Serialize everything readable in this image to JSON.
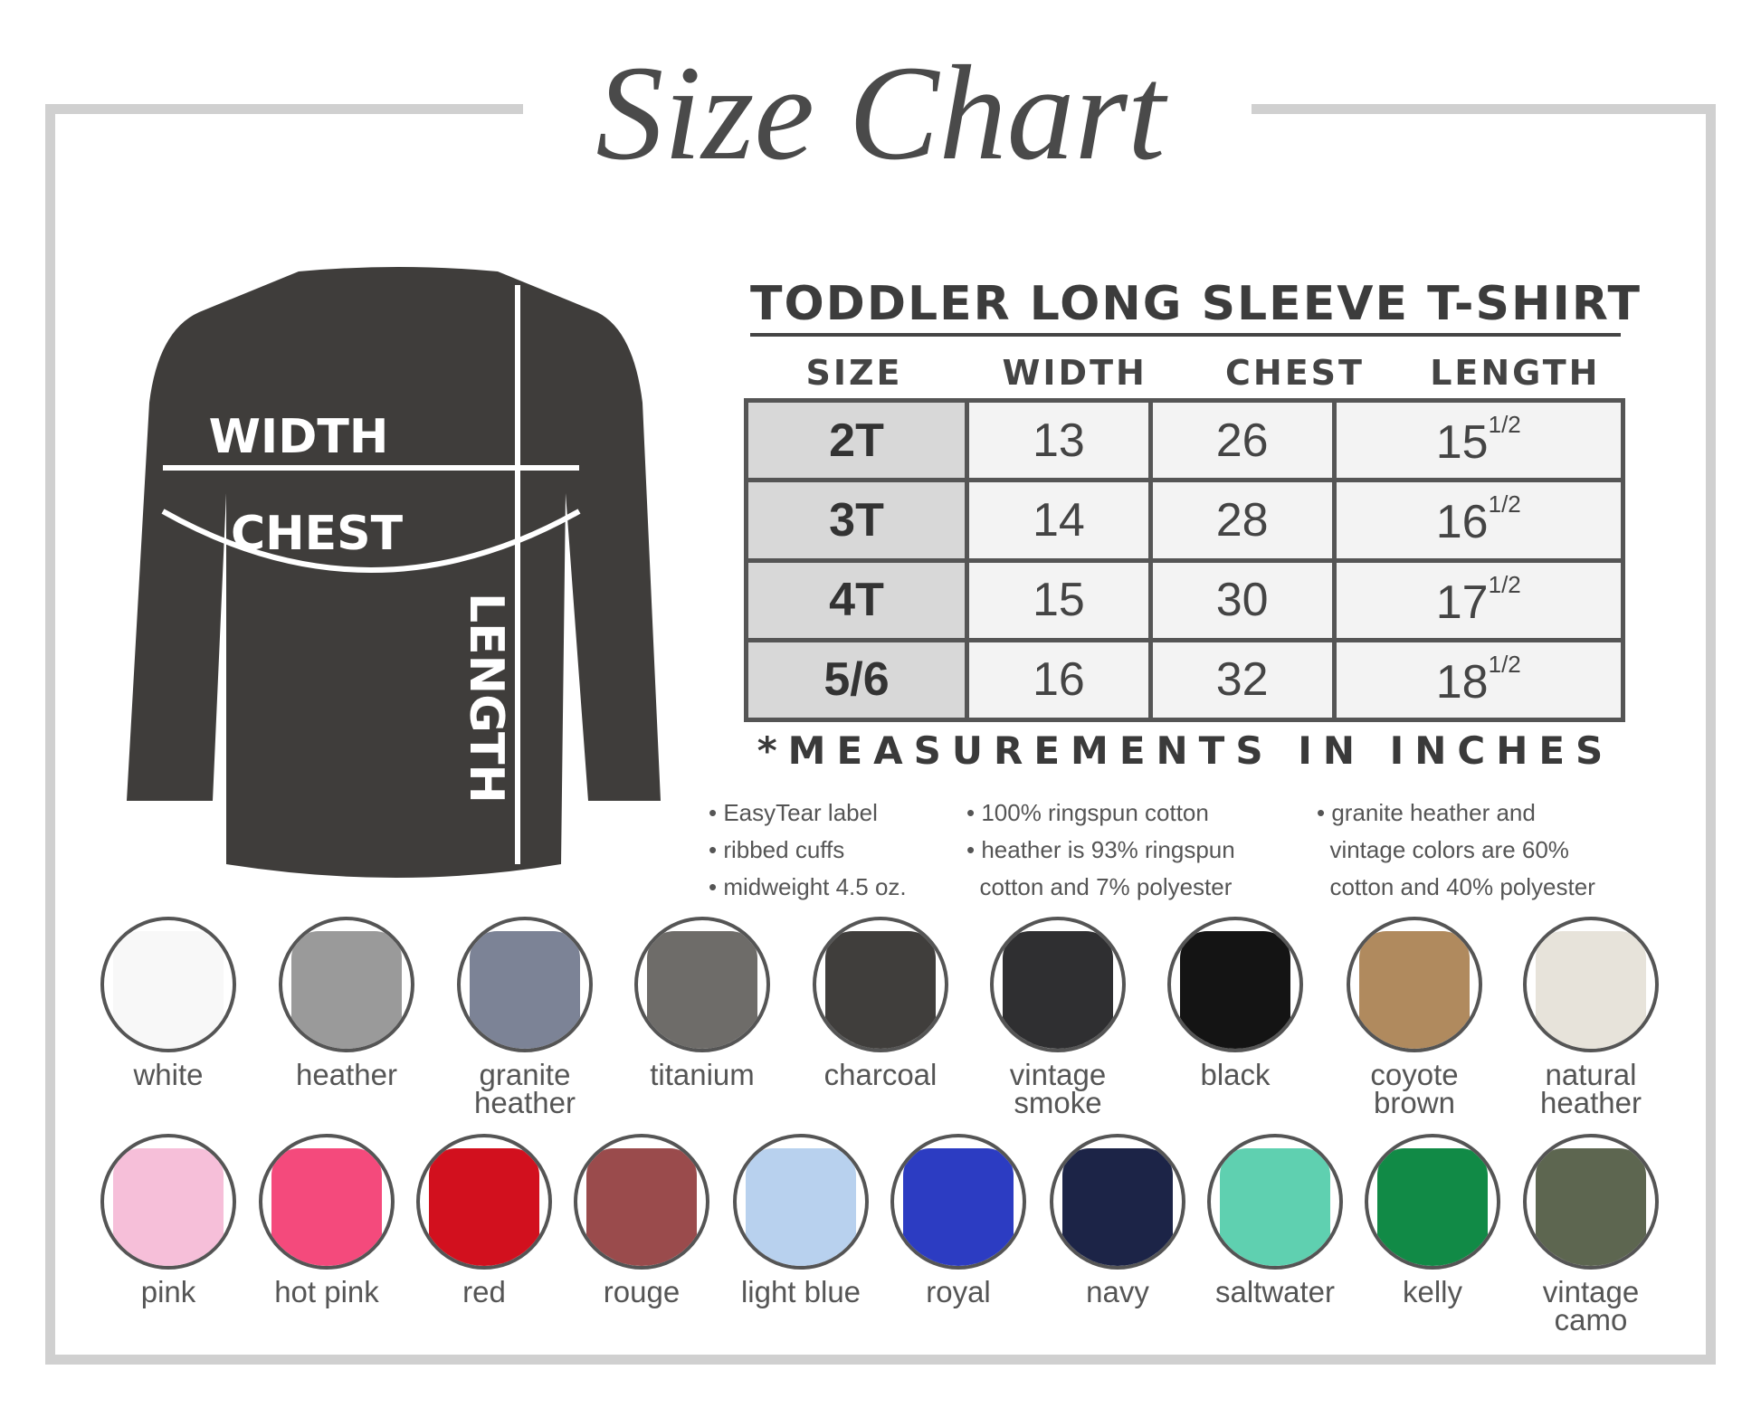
{
  "title": "Size Chart",
  "product": "TODDLER LONG SLEEVE T-SHIRT",
  "diagram": {
    "width": "WIDTH",
    "chest": "CHEST",
    "length": "LENGTH",
    "shirt_color": "#3f3d3b"
  },
  "table": {
    "headers": [
      "SIZE",
      "WIDTH",
      "CHEST",
      "LENGTH"
    ],
    "rows": [
      [
        "2T",
        "13",
        "26",
        "15",
        "1/2"
      ],
      [
        "3T",
        "14",
        "28",
        "16",
        "1/2"
      ],
      [
        "4T",
        "15",
        "30",
        "17",
        "1/2"
      ],
      [
        "5/6",
        "16",
        "32",
        "18",
        "1/2"
      ]
    ]
  },
  "note": "*MEASUREMENTS IN INCHES",
  "features": [
    [
      "• EasyTear label",
      "• ribbed cuffs",
      "• midweight 4.5 oz."
    ],
    [
      "• 100% ringspun cotton",
      "• heather is 93% ringspun",
      "  cotton and 7% polyester"
    ],
    [
      "• granite heather and",
      "  vintage colors are 60%",
      "  cotton and 40% polyester"
    ]
  ],
  "colors_row1": [
    {
      "name": "white",
      "hex": "#f8f8f8"
    },
    {
      "name": "heather",
      "hex": "#9a9a9a"
    },
    {
      "name": "granite heather",
      "hex": "#7c8396"
    },
    {
      "name": "titanium",
      "hex": "#6e6c69"
    },
    {
      "name": "charcoal",
      "hex": "#403e3c"
    },
    {
      "name": "vintage smoke",
      "hex": "#2f2f31"
    },
    {
      "name": "black",
      "hex": "#141414"
    },
    {
      "name": "coyote brown",
      "hex": "#b08a5e"
    },
    {
      "name": "natural heather",
      "hex": "#e7e3da"
    }
  ],
  "colors_row2": [
    {
      "name": "pink",
      "hex": "#f6bfd9"
    },
    {
      "name": "hot pink",
      "hex": "#f44a7c"
    },
    {
      "name": "red",
      "hex": "#d2101e"
    },
    {
      "name": "rouge",
      "hex": "#9a4b4c"
    },
    {
      "name": "light blue",
      "hex": "#b8d1ee"
    },
    {
      "name": "royal",
      "hex": "#2c3cc2"
    },
    {
      "name": "navy",
      "hex": "#1c2447"
    },
    {
      "name": "saltwater",
      "hex": "#5fd0b0"
    },
    {
      "name": "kelly",
      "hex": "#118a46"
    },
    {
      "name": "vintage camo",
      "hex": "#5d6650"
    }
  ]
}
